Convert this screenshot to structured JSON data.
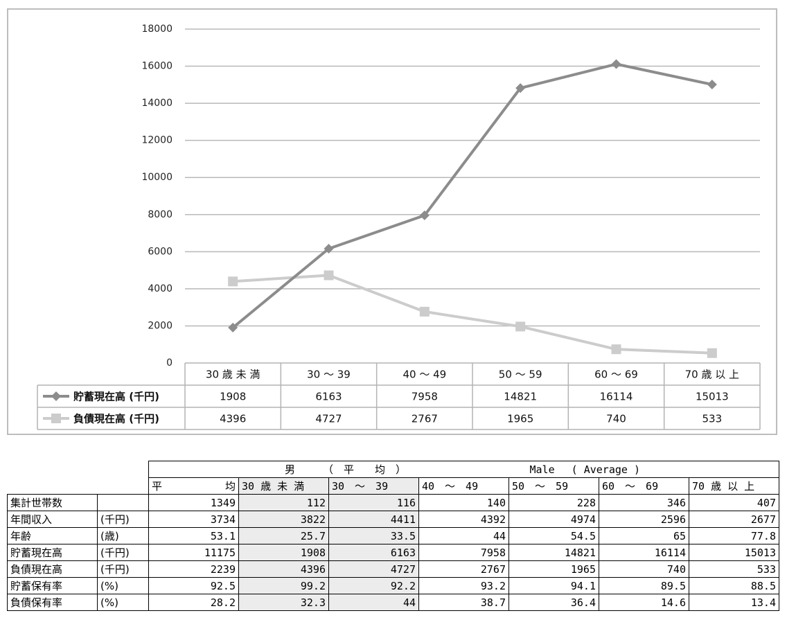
{
  "chart_data": {
    "type": "line",
    "categories": [
      "30 歳 未 満",
      "30 ～ 39",
      "40 ～ 49",
      "50 ～ 59",
      "60 ～ 69",
      "70 歳 以 上"
    ],
    "series": [
      {
        "name": "貯蓄現在高 (千円)",
        "values": [
          1908,
          6163,
          7958,
          14821,
          16114,
          15013
        ],
        "color": "#8c8c8c",
        "marker": "diamond"
      },
      {
        "name": "負債現在高 (千円)",
        "values": [
          4396,
          4727,
          2767,
          1965,
          740,
          533
        ],
        "color": "#cccccc",
        "marker": "square"
      }
    ],
    "ylim": [
      0,
      18000
    ],
    "yticks": [
      0,
      2000,
      4000,
      6000,
      8000,
      10000,
      12000,
      14000,
      16000,
      18000
    ],
    "grid": true,
    "legend": "data-table-below"
  },
  "table": {
    "group_label_jp": "男",
    "group_label_avg": "（　平　　均　）",
    "group_label_en": "Male　 ( Average )",
    "avg_left": "平",
    "avg_right": "均",
    "col_headers": [
      "30 歳 未 満",
      "30　～　39",
      "40　～　49",
      "50　～　59",
      "60　～　69",
      "70 歳 以 上"
    ],
    "rows": [
      {
        "label": "集計世帯数",
        "unit": "",
        "values": [
          "1349",
          "112",
          "116",
          "140",
          "228",
          "346",
          "407"
        ]
      },
      {
        "label": "年間収入",
        "unit": "(千円)",
        "values": [
          "3734",
          "3822",
          "4411",
          "4392",
          "4974",
          "2596",
          "2677"
        ]
      },
      {
        "label": "年齢",
        "unit": "(歳)",
        "values": [
          "53.1",
          "25.7",
          "33.5",
          "44",
          "54.5",
          "65",
          "77.8"
        ]
      },
      {
        "label": "貯蓄現在高",
        "unit": "(千円)",
        "values": [
          "11175",
          "1908",
          "6163",
          "7958",
          "14821",
          "16114",
          "15013"
        ]
      },
      {
        "label": "負債現在高",
        "unit": "(千円)",
        "values": [
          "2239",
          "4396",
          "4727",
          "2767",
          "1965",
          "740",
          "533"
        ]
      },
      {
        "label": "貯蓄保有率",
        "unit": "(%)",
        "values": [
          "92.5",
          "99.2",
          "92.2",
          "93.2",
          "94.1",
          "89.5",
          "88.5"
        ]
      },
      {
        "label": "負債保有率",
        "unit": "(%)",
        "values": [
          "28.2",
          "32.3",
          "44",
          "38.7",
          "36.4",
          "14.6",
          "13.4"
        ]
      }
    ]
  }
}
